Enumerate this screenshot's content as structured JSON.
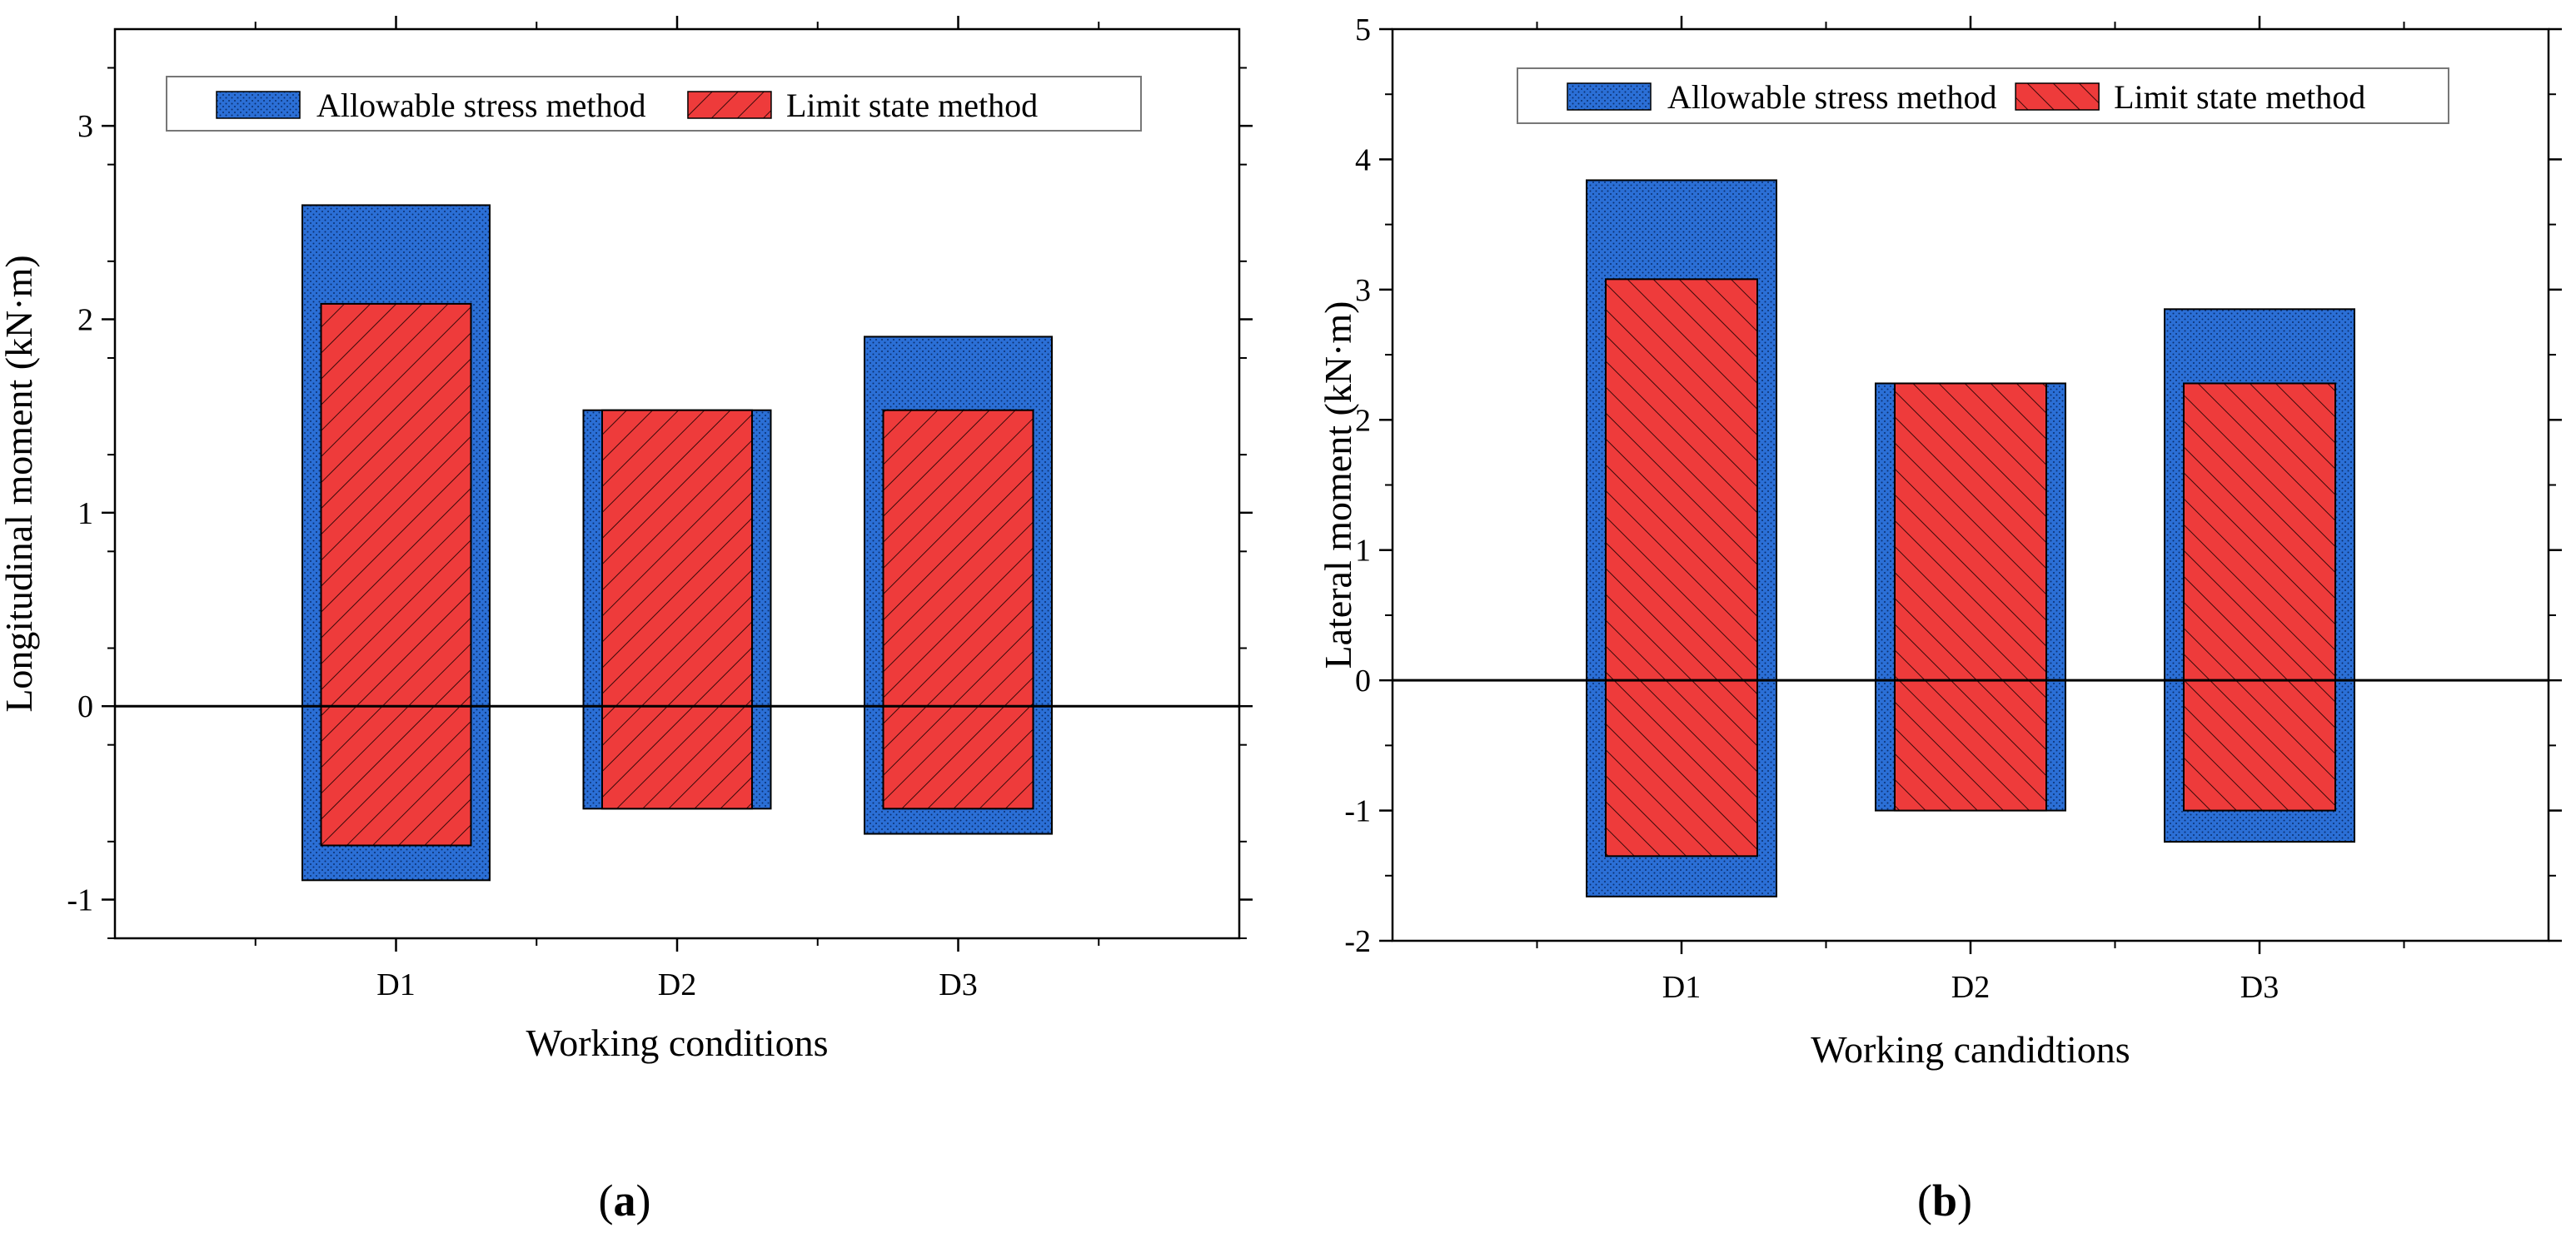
{
  "colors": {
    "allowable": "#2b6fd6",
    "allowable_dots": "#0b2f6e",
    "limit": "#ee3b3b",
    "limit_hatch": "#3a0a0a",
    "axis": "#000000"
  },
  "chart_data": [
    {
      "type": "floating-bar",
      "panel_label": "(a)",
      "panel_letter": "a",
      "xlabel": "Working conditions",
      "ylabel": "Longitudinal moment (kN·m)",
      "ylim": [
        -1.2,
        3.5
      ],
      "yticks": [
        "-1",
        "0",
        "1",
        "2",
        "3"
      ],
      "categories": [
        "D1",
        "D2",
        "D3"
      ],
      "legend_position": "top",
      "hatch_direction": "up",
      "series": [
        {
          "name": "Allowable stress method",
          "min": [
            -0.9,
            -0.53,
            -0.66
          ],
          "max": [
            2.59,
            1.53,
            1.91
          ]
        },
        {
          "name": "Limit state method",
          "min": [
            -0.72,
            -0.53,
            -0.53
          ],
          "max": [
            2.08,
            1.53,
            1.53
          ]
        }
      ]
    },
    {
      "type": "floating-bar",
      "panel_label": "(b)",
      "panel_letter": "b",
      "xlabel": "Working candidtions",
      "ylabel": "Lateral moment (kN·m)",
      "ylim": [
        -2,
        5
      ],
      "yticks": [
        "-2",
        "-1",
        "0",
        "1",
        "2",
        "3",
        "4",
        "5"
      ],
      "categories": [
        "D1",
        "D2",
        "D3"
      ],
      "legend_position": "top",
      "hatch_direction": "down",
      "series": [
        {
          "name": "Allowable stress method",
          "min": [
            -1.66,
            -1.0,
            -1.24
          ],
          "max": [
            3.84,
            2.28,
            2.85
          ]
        },
        {
          "name": "Limit state method",
          "min": [
            -1.35,
            -1.0,
            -1.0
          ],
          "max": [
            3.08,
            2.28,
            2.28
          ]
        }
      ]
    }
  ]
}
